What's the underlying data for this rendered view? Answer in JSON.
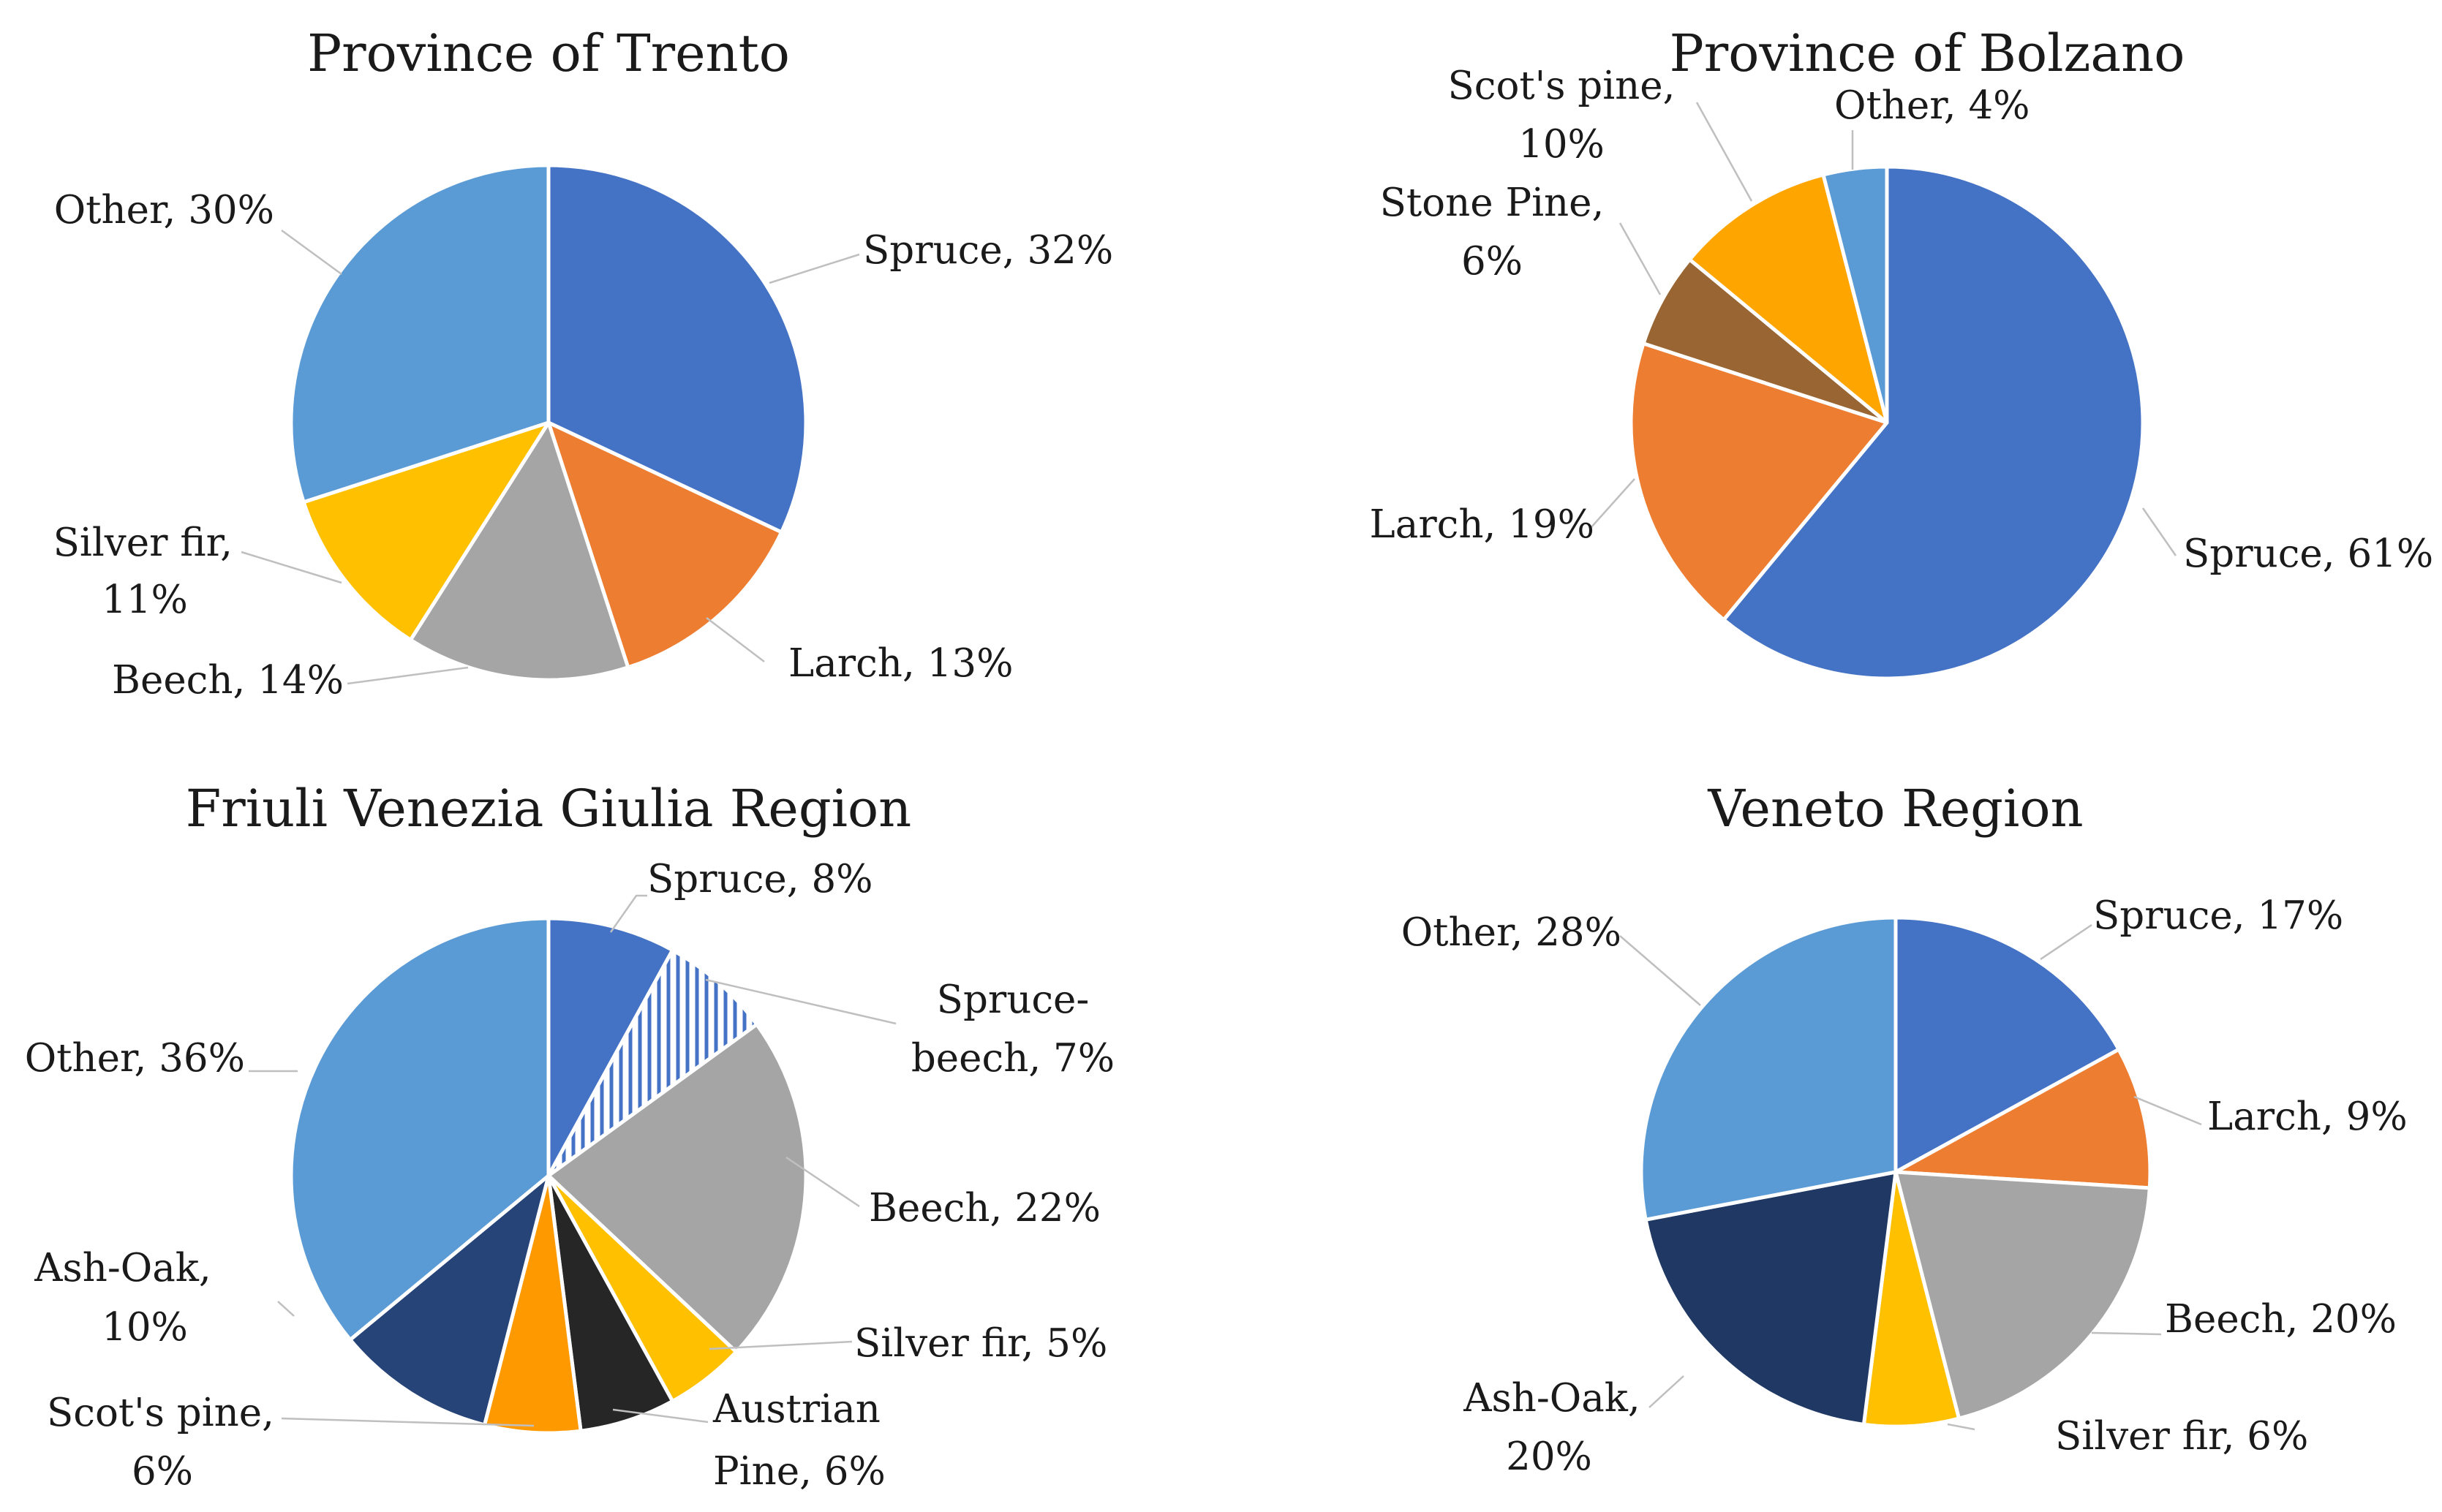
{
  "chart_data": [
    {
      "type": "pie",
      "title": "Province of Trento",
      "slices": [
        {
          "name": "Spruce",
          "value": 32,
          "label": [
            "Spruce, 32%"
          ],
          "color": "#4472C4"
        },
        {
          "name": "Larch",
          "value": 13,
          "label": [
            "Larch, 13%"
          ],
          "color": "#ED7D31"
        },
        {
          "name": "Beech",
          "value": 14,
          "label": [
            "Beech, 14%"
          ],
          "color": "#A5A5A5"
        },
        {
          "name": "Silver fir",
          "value": 11,
          "label": [
            "Silver fir,",
            "11%"
          ],
          "color": "#FFC000"
        },
        {
          "name": "Other",
          "value": 30,
          "label": [
            "Other, 30%"
          ],
          "color": "#5B9BD5"
        }
      ]
    },
    {
      "type": "pie",
      "title": "Province of Bolzano",
      "slices": [
        {
          "name": "Spruce",
          "value": 61,
          "label": [
            "Spruce, 61%"
          ],
          "color": "#4472C4"
        },
        {
          "name": "Larch",
          "value": 19,
          "label": [
            "Larch, 19%"
          ],
          "color": "#ED7D31"
        },
        {
          "name": "Stone Pine",
          "value": 6,
          "label": [
            "Stone Pine,",
            "6%"
          ],
          "color": "#996633"
        },
        {
          "name": "Scot's pine",
          "value": 10,
          "label": [
            "Scot's pine,",
            "10%"
          ],
          "color": "#FFA500"
        },
        {
          "name": "Other",
          "value": 4,
          "label": [
            "Other, 4%"
          ],
          "color": "#5B9BD5"
        }
      ]
    },
    {
      "type": "pie",
      "title": "Friuli Venezia Giulia Region",
      "slices": [
        {
          "name": "Spruce",
          "value": 8,
          "label": [
            "Spruce, 8%"
          ],
          "color": "#4472C4"
        },
        {
          "name": "Spruce-beech",
          "value": 7,
          "label": [
            "Spruce-",
            "beech, 7%"
          ],
          "color": "#4472C4",
          "pattern": "hatch"
        },
        {
          "name": "Beech",
          "value": 22,
          "label": [
            "Beech, 22%"
          ],
          "color": "#A5A5A5"
        },
        {
          "name": "Silver fir",
          "value": 5,
          "label": [
            "Silver fir,  5%"
          ],
          "color": "#FFC000"
        },
        {
          "name": "Austrian Pine",
          "value": 6,
          "label": [
            "Austrian",
            "Pine, 6%"
          ],
          "color": "#262626"
        },
        {
          "name": "Scot's pine",
          "value": 6,
          "label": [
            "Scot's pine,",
            "6%"
          ],
          "color": "#FF9900"
        },
        {
          "name": "Ash-Oak",
          "value": 10,
          "label": [
            "Ash-Oak,",
            "10%"
          ],
          "color": "#264478"
        },
        {
          "name": "Other",
          "value": 36,
          "label": [
            "Other, 36%"
          ],
          "color": "#5B9BD5"
        }
      ]
    },
    {
      "type": "pie",
      "title": "Veneto Region",
      "slices": [
        {
          "name": "Spruce",
          "value": 17,
          "label": [
            "Spruce, 17%"
          ],
          "color": "#4472C4"
        },
        {
          "name": "Larch",
          "value": 9,
          "label": [
            "Larch, 9%"
          ],
          "color": "#ED7D31"
        },
        {
          "name": "Beech",
          "value": 20,
          "label": [
            "Beech, 20%"
          ],
          "color": "#A5A5A5"
        },
        {
          "name": "Silver fir",
          "value": 6,
          "label": [
            "Silver fir,  6%"
          ],
          "color": "#FFC000"
        },
        {
          "name": "Ash-Oak",
          "value": 20,
          "label": [
            "Ash-Oak,",
            "20%"
          ],
          "color": "#203864"
        },
        {
          "name": "Other",
          "value": 28,
          "label": [
            "Other, 28%"
          ],
          "color": "#5B9BD5"
        }
      ]
    }
  ]
}
